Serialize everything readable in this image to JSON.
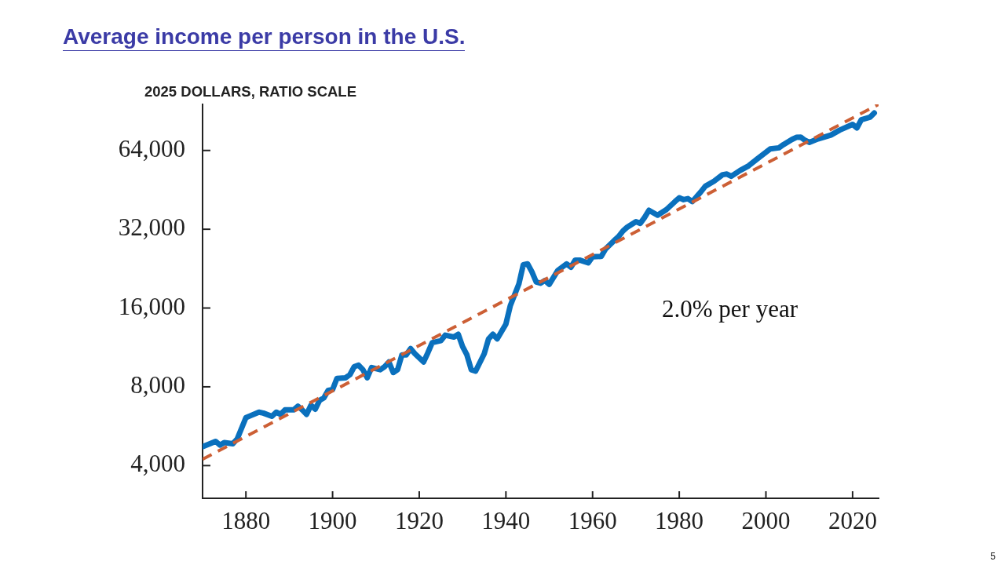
{
  "chart_data": {
    "type": "line",
    "title": "Average income per person in the U.S.",
    "ylabel": "2025 DOLLARS, RATIO SCALE",
    "series": [
      {
        "color": "#0a70bd",
        "x": [
          1870,
          1873,
          1874,
          1875,
          1877,
          1878,
          1880,
          1881,
          1883,
          1884,
          1886,
          1887,
          1888,
          1889,
          1891,
          1892,
          1893,
          1894,
          1895,
          1896,
          1897,
          1898,
          1899,
          1900,
          1901,
          1903,
          1904,
          1905,
          1906,
          1907,
          1908,
          1909,
          1911,
          1912,
          1913,
          1914,
          1915,
          1916,
          1917,
          1918,
          1919,
          1921,
          1922,
          1923,
          1925,
          1926,
          1928,
          1929,
          1930,
          1931,
          1932,
          1933,
          1935,
          1936,
          1937,
          1938,
          1940,
          1941,
          1943,
          1944,
          1945,
          1946,
          1947,
          1948,
          1949,
          1950,
          1952,
          1954,
          1955,
          1956,
          1957,
          1959,
          1960,
          1962,
          1963,
          1965,
          1966,
          1967,
          1968,
          1970,
          1971,
          1972,
          1973,
          1975,
          1977,
          1979,
          1980,
          1981,
          1982,
          1983,
          1985,
          1986,
          1988,
          1990,
          1991,
          1992,
          1994,
          1996,
          1998,
          2000,
          2001,
          2003,
          2004,
          2006,
          2007,
          2008,
          2009,
          2010,
          2012,
          2015,
          2017,
          2020,
          2021,
          2022,
          2024,
          2025
        ],
        "values": [
          4720,
          4950,
          4790,
          4900,
          4850,
          5060,
          6100,
          6200,
          6400,
          6350,
          6170,
          6400,
          6280,
          6530,
          6530,
          6750,
          6530,
          6280,
          6800,
          6570,
          7100,
          7260,
          7760,
          7810,
          8610,
          8660,
          8900,
          9550,
          9680,
          9300,
          8660,
          9480,
          9300,
          9550,
          9950,
          9070,
          9300,
          10600,
          10600,
          11200,
          10700,
          9950,
          10800,
          11800,
          12000,
          12600,
          12400,
          12700,
          11400,
          10600,
          9300,
          9180,
          10700,
          12200,
          12700,
          12200,
          13900,
          16300,
          19800,
          23400,
          23600,
          22000,
          20100,
          19900,
          20400,
          19700,
          22300,
          23600,
          22900,
          24400,
          24400,
          23800,
          25100,
          25200,
          26900,
          29000,
          30000,
          31500,
          32600,
          34200,
          33700,
          35500,
          37800,
          36200,
          38000,
          40800,
          42200,
          41500,
          41900,
          40800,
          44500,
          46700,
          48800,
          51700,
          52000,
          51000,
          53600,
          55900,
          59400,
          63000,
          64900,
          65500,
          67300,
          70500,
          71800,
          72000,
          70000,
          68700,
          70800,
          73300,
          76500,
          80500,
          78000,
          83900,
          85700,
          89000
        ]
      },
      {
        "type": "line",
        "color": "#cc5f35",
        "line_style": "dashed",
        "x": [
          1870,
          2026
        ],
        "values": [
          4230,
          96000
        ]
      }
    ],
    "xlim": [
      1870,
      2026
    ],
    "xticks": [
      1880,
      1900,
      1920,
      1940,
      1960,
      1980,
      2000,
      2020
    ],
    "ylim": [
      3000,
      96000
    ],
    "yticks": [
      {
        "value": 4000,
        "label": "4,000"
      },
      {
        "value": 8000,
        "label": "8,000"
      },
      {
        "value": 16000,
        "label": "16,000"
      },
      {
        "value": 32000,
        "label": "32,000"
      },
      {
        "value": 64000,
        "label": "64,000"
      }
    ],
    "log": "y",
    "grid": false,
    "legend": false,
    "marker": "none",
    "line_style": "solid",
    "annotations": [
      "2.0% per year",
      "5"
    ]
  }
}
